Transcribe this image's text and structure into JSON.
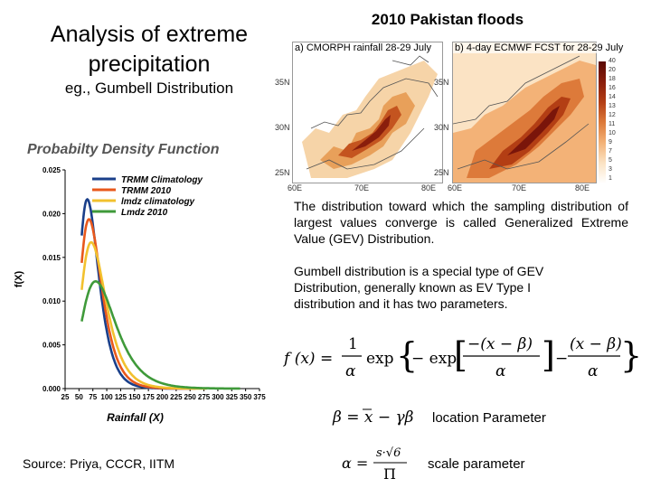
{
  "titles": {
    "left": "Analysis of extreme precipitation",
    "left_sub": "eg., Gumbell Distribution",
    "right": "2010 Pakistan floods"
  },
  "maps": {
    "left_label": "a) CMORPH rainfall 28-29 July",
    "right_label": "b) 4-day ECMWF FCST for 28-29 July",
    "lat_labels": [
      "35N",
      "30N",
      "25N"
    ],
    "lon_labels_left": [
      "60E",
      "70E",
      "80E"
    ],
    "lon_labels_right": [
      "60E",
      "70E",
      "80E"
    ],
    "colorbar_ticks": [
      "40",
      "20",
      "18",
      "16",
      "14",
      "13",
      "12",
      "11",
      "10",
      "9",
      "7",
      "5",
      "3",
      "1"
    ]
  },
  "paragraphs": {
    "gev": "The distribution toward which the sampling distribution of largest values converge is called Generalized Extreme Value (GEV) Distribution.",
    "gumbel": "Gumbell distribution is a special type of GEV Distribution, generally known as EV Type I distribution and it has two parameters."
  },
  "formulas": {
    "location_label": "location Parameter",
    "scale_label": "scale parameter"
  },
  "source": "Source:  Priya, CCCR, IITM",
  "chart_data": {
    "type": "line",
    "title": "Probabilty Density Function",
    "xlabel": "Rainfall (X)",
    "ylabel": "f(X)",
    "x_ticks": [
      25,
      50,
      75,
      100,
      125,
      150,
      175,
      200,
      225,
      250,
      275,
      300,
      325,
      350,
      375
    ],
    "x_tick_labels": [
      "25",
      "50",
      "75",
      "100",
      "125",
      "150",
      "175",
      "200",
      "225",
      "250",
      "275",
      "300",
      "325",
      "350",
      "375"
    ],
    "y_ticks": [
      0.0,
      0.005,
      0.01,
      0.015,
      0.02,
      0.025
    ],
    "y_tick_labels": [
      "0.000",
      "0.005",
      "0.010",
      "0.015",
      "0.020",
      "0.025"
    ],
    "xlim": [
      25,
      375
    ],
    "ylim": [
      0,
      0.025
    ],
    "legend_position": "top-right",
    "series": [
      {
        "name": "TRMM Climatology",
        "color": "#1a3f8a",
        "location": 65,
        "scale": 17,
        "x_start": 55,
        "x_end": 250
      },
      {
        "name": "TRMM 2010",
        "color": "#e8581c",
        "location": 68,
        "scale": 19,
        "x_start": 55,
        "x_end": 260
      },
      {
        "name": "lmdz climatology",
        "color": "#f2c12e",
        "location": 72,
        "scale": 22,
        "x_start": 55,
        "x_end": 280
      },
      {
        "name": "Lmdz 2010",
        "color": "#3f9a3a",
        "location": 80,
        "scale": 30,
        "x_start": 55,
        "x_end": 340
      }
    ]
  }
}
